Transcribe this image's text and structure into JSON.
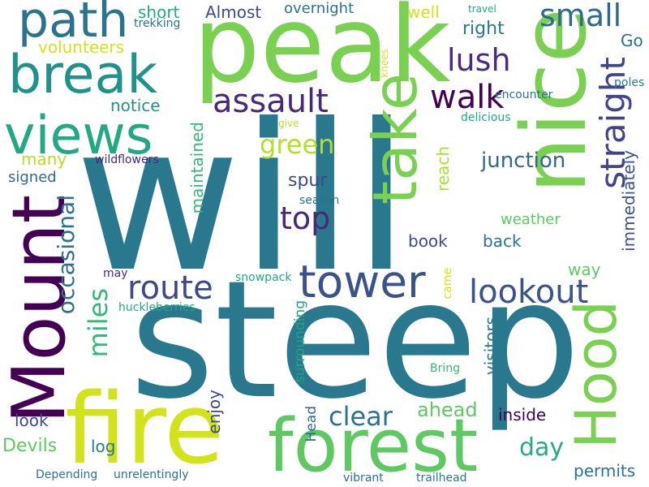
{
  "words": [
    {
      "text": "will",
      "color": "#2a788e",
      "rotated": false
    },
    {
      "text": "steep",
      "color": "#2a788e",
      "rotated": false
    },
    {
      "text": "peak",
      "color": "#7ad151",
      "rotated": false
    },
    {
      "text": "nice",
      "color": "#7ad151",
      "rotated": true
    },
    {
      "text": "fire",
      "color": "#d2e21b",
      "rotated": false
    },
    {
      "text": "forest",
      "color": "#5ec962",
      "rotated": false
    },
    {
      "text": "Mount",
      "color": "#440154",
      "rotated": true
    },
    {
      "text": "Hood",
      "color": "#7ad151",
      "rotated": true
    },
    {
      "text": "take",
      "color": "#7ad151",
      "rotated": true
    },
    {
      "text": "views",
      "color": "#22a884",
      "rotated": false
    },
    {
      "text": "break",
      "color": "#21918c",
      "rotated": false
    },
    {
      "text": "path",
      "color": "#2c728e",
      "rotated": false
    },
    {
      "text": "tower",
      "color": "#3b528b",
      "rotated": false
    },
    {
      "text": "route",
      "color": "#3e4989",
      "rotated": false
    },
    {
      "text": "lookout",
      "color": "#3b528b",
      "rotated": false
    },
    {
      "text": "straight",
      "color": "#414487",
      "rotated": true
    },
    {
      "text": "assault",
      "color": "#482878",
      "rotated": false
    },
    {
      "text": "walk",
      "color": "#440154",
      "rotated": false
    },
    {
      "text": "small",
      "color": "#31688e",
      "rotated": false
    },
    {
      "text": "lush",
      "color": "#472d7b",
      "rotated": false
    },
    {
      "text": "top",
      "color": "#482878",
      "rotated": false
    },
    {
      "text": "green",
      "color": "#b5de2b",
      "rotated": false
    },
    {
      "text": "miles",
      "color": "#35b779",
      "rotated": true
    },
    {
      "text": "occasional",
      "color": "#2c728e",
      "rotated": true
    },
    {
      "text": "clear",
      "color": "#2c728e",
      "rotated": false
    },
    {
      "text": "day",
      "color": "#25ab82",
      "rotated": false
    },
    {
      "text": "junction",
      "color": "#31688e",
      "rotated": false
    },
    {
      "text": "immediately",
      "color": "#3b528b",
      "rotated": true
    },
    {
      "text": "maintained",
      "color": "#35b779",
      "rotated": true
    },
    {
      "text": "surrounding",
      "color": "#20a486",
      "rotated": true
    },
    {
      "text": "visitors",
      "color": "#2a788e",
      "rotated": true
    },
    {
      "text": "ahead",
      "color": "#5ec962",
      "rotated": false
    },
    {
      "text": "inside",
      "color": "#440154",
      "rotated": false
    },
    {
      "text": "spur",
      "color": "#3e4989",
      "rotated": false
    },
    {
      "text": "reach",
      "color": "#addc30",
      "rotated": true
    },
    {
      "text": "weather",
      "color": "#5ec962",
      "rotated": false
    },
    {
      "text": "book",
      "color": "#3e4989",
      "rotated": false
    },
    {
      "text": "back",
      "color": "#2c728e",
      "rotated": false
    },
    {
      "text": "way",
      "color": "#5ec962",
      "rotated": false
    },
    {
      "text": "Devils",
      "color": "#5ec962",
      "rotated": false
    },
    {
      "text": "log",
      "color": "#2a788e",
      "rotated": false
    },
    {
      "text": "look",
      "color": "#3e4989",
      "rotated": false
    },
    {
      "text": "enjoy",
      "color": "#3e4989",
      "rotated": true
    },
    {
      "text": "Head",
      "color": "#31688e",
      "rotated": true
    },
    {
      "text": "came",
      "color": "#d2e21b",
      "rotated": true
    },
    {
      "text": "permits",
      "color": "#2c728e",
      "rotated": false
    },
    {
      "text": "Go",
      "color": "#2c728e",
      "rotated": false
    },
    {
      "text": "right",
      "color": "#2a788e",
      "rotated": false
    },
    {
      "text": "well",
      "color": "#d2e21b",
      "rotated": false
    },
    {
      "text": "short",
      "color": "#25ab82",
      "rotated": false
    },
    {
      "text": "Almost",
      "color": "#3e4989",
      "rotated": false
    },
    {
      "text": "overnight",
      "color": "#2c728e",
      "rotated": false
    },
    {
      "text": "volunteers",
      "color": "#d2e21b",
      "rotated": false
    },
    {
      "text": "trekking",
      "color": "#2c728e",
      "rotated": false
    },
    {
      "text": "notice",
      "color": "#21918c",
      "rotated": false
    },
    {
      "text": "many",
      "color": "#b5de2b",
      "rotated": false
    },
    {
      "text": "signed",
      "color": "#31688e",
      "rotated": false
    },
    {
      "text": "wildflowers",
      "color": "#482878",
      "rotated": false
    },
    {
      "text": "give",
      "color": "#b5de2b",
      "rotated": false
    },
    {
      "text": "season",
      "color": "#2c728e",
      "rotated": false
    },
    {
      "text": "delicious",
      "color": "#22a884",
      "rotated": false
    },
    {
      "text": "encounter",
      "color": "#2c728e",
      "rotated": false
    },
    {
      "text": "poles",
      "color": "#2a788e",
      "rotated": false
    },
    {
      "text": "knees",
      "color": "#d2e21b",
      "rotated": true
    },
    {
      "text": "travel",
      "color": "#22a884",
      "rotated": false
    },
    {
      "text": "may",
      "color": "#482878",
      "rotated": false
    },
    {
      "text": "snowpack",
      "color": "#22a884",
      "rotated": false
    },
    {
      "text": "huckleberries",
      "color": "#22a884",
      "rotated": false
    },
    {
      "text": "Bring",
      "color": "#35b779",
      "rotated": false
    },
    {
      "text": "Depending",
      "color": "#2c728e",
      "rotated": false
    },
    {
      "text": "unrelentingly",
      "color": "#2c728e",
      "rotated": false
    },
    {
      "text": "vibrant",
      "color": "#2c728e",
      "rotated": false
    },
    {
      "text": "trailhead",
      "color": "#2a788e",
      "rotated": false
    }
  ]
}
